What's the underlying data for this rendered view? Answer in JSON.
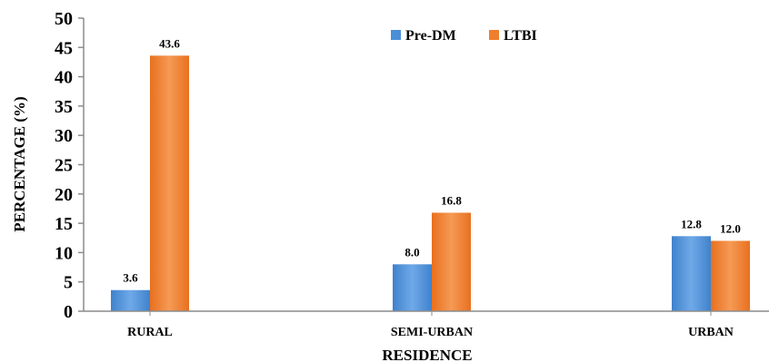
{
  "chart_data": {
    "type": "bar",
    "categories": [
      "RURAL",
      "SEMI-URBAN",
      "URBAN"
    ],
    "series": [
      {
        "name": "Pre-DM",
        "values": [
          3.6,
          8.0,
          12.8
        ],
        "labels": [
          "3.6",
          "8.0",
          "12.8"
        ],
        "color": "#4a8fd8"
      },
      {
        "name": "LTBI",
        "values": [
          43.6,
          16.8,
          12.0
        ],
        "labels": [
          "43.6",
          "16.8",
          "12.0"
        ],
        "color": "#ef7f2e"
      }
    ],
    "title": "",
    "xlabel": "RESIDENCE",
    "ylabel": "PERCENTAGE (%)",
    "ylim": [
      0,
      50
    ],
    "yticks": [
      "0",
      "5",
      "10",
      "15",
      "20",
      "25",
      "30",
      "35",
      "40",
      "45",
      "50"
    ],
    "grid": false,
    "legend_position": "top-center"
  }
}
